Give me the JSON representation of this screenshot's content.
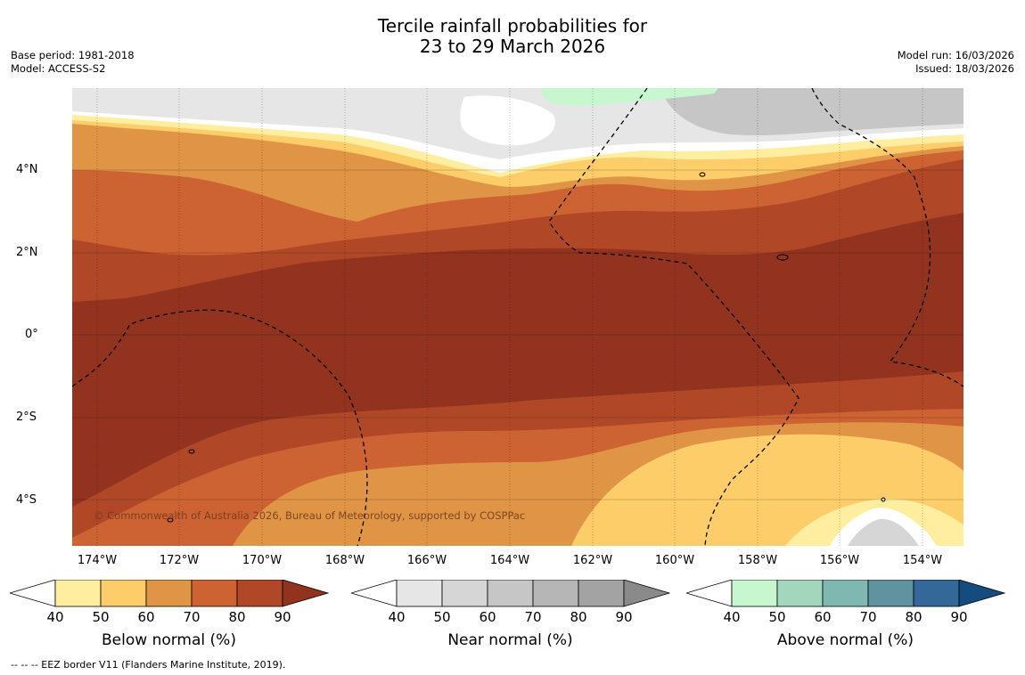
{
  "title": {
    "line1": "Tercile rainfall probabilities for",
    "line2": "23 to 29 March 2026"
  },
  "meta_left": {
    "base_period": "Base period: 1981-2018",
    "model": "Model: ACCESS-S2"
  },
  "meta_right": {
    "model_run": "Model run: 16/03/2026",
    "issued": "Issued: 18/03/2026"
  },
  "map": {
    "copyright": "© Commonwealth of Australia 2026, Bureau of Meteorology, supported by COSPPac",
    "lat_labels": [
      "4°N",
      "2°N",
      "0°",
      "2°S",
      "4°S"
    ],
    "lon_labels": [
      "174°W",
      "172°W",
      "170°W",
      "168°W",
      "166°W",
      "164°W",
      "162°W",
      "160°W",
      "158°W",
      "156°W",
      "154°W"
    ],
    "eez_color": "#000000"
  },
  "legends": {
    "below": {
      "label": "Below normal (%)",
      "ticks": [
        "40",
        "50",
        "60",
        "70",
        "80",
        "90"
      ],
      "colors": [
        "#ffffff",
        "#ffeda0",
        "#fdcd6a",
        "#e09446",
        "#cd6233",
        "#b04828",
        "#923320"
      ]
    },
    "near": {
      "label": "Near normal (%)",
      "ticks": [
        "40",
        "50",
        "60",
        "70",
        "80",
        "90"
      ],
      "colors": [
        "#ffffff",
        "#e6e6e6",
        "#d6d6d6",
        "#c6c6c6",
        "#b6b6b6",
        "#a3a3a3",
        "#8a8a8a"
      ]
    },
    "above": {
      "label": "Above normal (%)",
      "ticks": [
        "40",
        "50",
        "60",
        "70",
        "80",
        "90"
      ],
      "colors": [
        "#ffffff",
        "#c7f7cf",
        "#a3d7bd",
        "#7fb8b0",
        "#5f939f",
        "#346899",
        "#154c7f"
      ]
    }
  },
  "footnote": "--  --  -- EEZ border V11 (Flanders Marine Institute, 2019)."
}
